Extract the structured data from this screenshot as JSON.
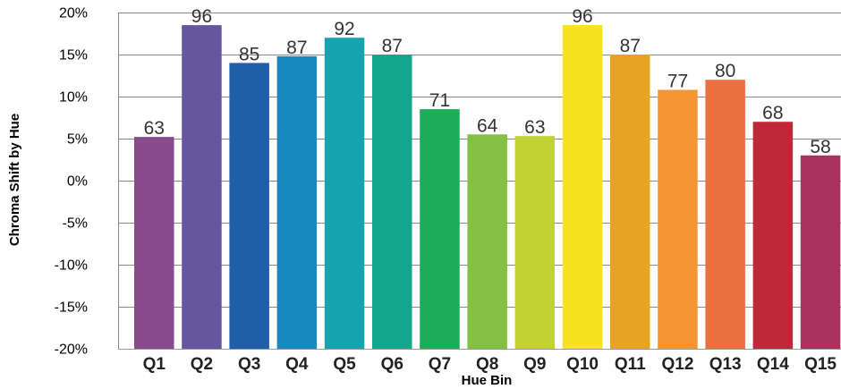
{
  "chart_data": {
    "type": "bar",
    "title": "",
    "xlabel": "Hue Bin",
    "ylabel": "Chroma Shift by Hue",
    "categories": [
      "Q1",
      "Q2",
      "Q3",
      "Q4",
      "Q5",
      "Q6",
      "Q7",
      "Q8",
      "Q9",
      "Q10",
      "Q11",
      "Q12",
      "Q13",
      "Q14",
      "Q15"
    ],
    "values": [
      5.2,
      18.5,
      14.0,
      14.8,
      17.0,
      15.0,
      8.5,
      5.5,
      5.3,
      18.5,
      15.0,
      10.8,
      12.0,
      7.0,
      3.0
    ],
    "data_labels": [
      "63",
      "96",
      "85",
      "87",
      "92",
      "87",
      "71",
      "64",
      "63",
      "96",
      "87",
      "77",
      "80",
      "68",
      "58"
    ],
    "ylim": [
      -20,
      20
    ],
    "yticks": [
      20,
      15,
      10,
      5,
      0,
      -5,
      -10,
      -15,
      -20
    ],
    "ytick_labels": [
      "20%",
      "15%",
      "10%",
      "5%",
      "0%",
      "-5%",
      "-10%",
      "-15%",
      "-20%"
    ],
    "grid": true,
    "legend": "none",
    "colors": [
      "#8a4a8e",
      "#66569f",
      "#1f5ea8",
      "#1789bf",
      "#15a4ae",
      "#14a68e",
      "#1dac58",
      "#83c043",
      "#c3d232",
      "#f8e21e",
      "#e7a424",
      "#f59533",
      "#e97140",
      "#bd2937",
      "#a9325f"
    ],
    "gridline_color": "#888888",
    "baseline_color": "#999999"
  }
}
